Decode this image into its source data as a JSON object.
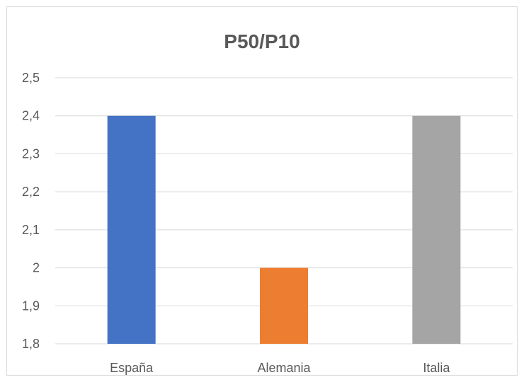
{
  "chart_data": {
    "type": "bar",
    "title": "P50/P10",
    "xlabel": "",
    "ylabel": "",
    "categories": [
      "España",
      "Alemania",
      "Italia"
    ],
    "values": [
      2.4,
      2.0,
      2.4
    ],
    "colors": [
      "#4472c4",
      "#ed7d31",
      "#a5a5a5"
    ],
    "ylim": [
      1.8,
      2.5
    ],
    "yticks": [
      1.8,
      1.9,
      2.0,
      2.1,
      2.2,
      2.3,
      2.4,
      2.5
    ],
    "ytick_labels": [
      "1,8",
      "1,9",
      "2",
      "2,1",
      "2,2",
      "2,3",
      "2,4",
      "2,5"
    ],
    "grid": true,
    "legend": "none"
  }
}
